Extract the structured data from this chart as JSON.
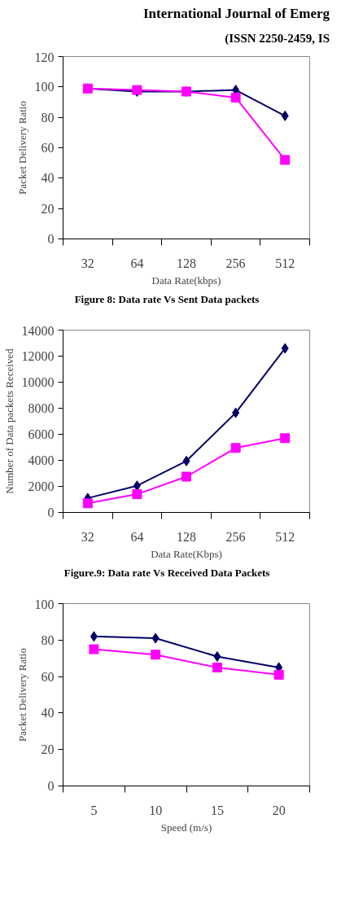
{
  "chart_data": [
    {
      "type": "other",
      "annotations": [
        "International Journal of Emerg",
        "(ISSN 2250-2459, IS"
      ]
    },
    {
      "type": "line",
      "xlabel": "Data Rate(kbps)",
      "ylabel": "Packet Delivery Ratio",
      "categories": [
        "32",
        "64",
        "128",
        "256",
        "512"
      ],
      "ylim": [
        0,
        120
      ],
      "yticks": [
        0,
        20,
        40,
        60,
        80,
        100,
        120
      ],
      "grid": false,
      "series": [
        {
          "color": "#000066",
          "marker": "diamond",
          "values": [
            99,
            97,
            97,
            98,
            81
          ]
        },
        {
          "color": "#ff00ff",
          "marker": "square",
          "values": [
            99,
            98,
            97,
            93,
            52
          ]
        }
      ],
      "annotations": [
        "Figure 8: Data rate Vs Sent Data packets"
      ]
    },
    {
      "type": "line",
      "xlabel": "Data Rate(Kbps)",
      "ylabel": "Number of Data packets Received",
      "categories": [
        "32",
        "64",
        "128",
        "256",
        "512"
      ],
      "ylim": [
        0,
        14000
      ],
      "yticks": [
        0,
        2000,
        4000,
        6000,
        8000,
        10000,
        12000,
        14000
      ],
      "grid": false,
      "series": [
        {
          "color": "#000066",
          "marker": "diamond",
          "values": [
            1100,
            2050,
            3950,
            7650,
            12600
          ]
        },
        {
          "color": "#ff00ff",
          "marker": "square",
          "values": [
            700,
            1400,
            2750,
            4950,
            5700
          ]
        }
      ],
      "annotations": [
        "Figure.9: Data rate Vs Received Data Packets"
      ]
    },
    {
      "type": "line",
      "xlabel": "Speed (m/s)",
      "ylabel": "Packet Delivery Ratio",
      "categories": [
        "5",
        "10",
        "15",
        "20"
      ],
      "ylim": [
        0,
        100
      ],
      "yticks": [
        0,
        20,
        40,
        60,
        80,
        100
      ],
      "grid": false,
      "series": [
        {
          "color": "#000066",
          "marker": "diamond",
          "values": [
            82,
            81,
            71,
            65
          ]
        },
        {
          "color": "#ff00ff",
          "marker": "square",
          "values": [
            75,
            72,
            65,
            61
          ]
        }
      ]
    }
  ]
}
